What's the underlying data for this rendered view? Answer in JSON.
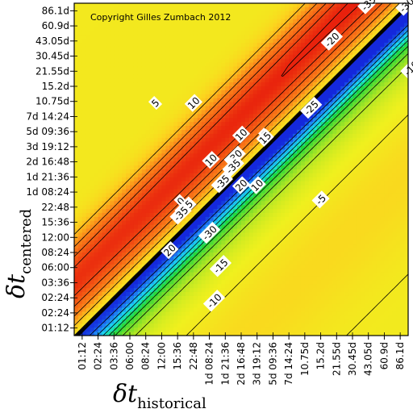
{
  "chart_data": {
    "type": "heatmap",
    "title": "",
    "annotation": "Copyright Gilles Zumbach 2012",
    "xlabel": {
      "symbol": "δt",
      "subscript": "historical"
    },
    "ylabel": {
      "symbol": "δt",
      "subscript": "centered"
    },
    "x_ticks": [
      "01:12",
      "02:24",
      "03:36",
      "06:00",
      "08:24",
      "12:00",
      "15:36",
      "22:48",
      "1d 08:24",
      "1d 21:36",
      "2d 16:48",
      "3d 19:12",
      "5d 09:36",
      "7d 14:24",
      "10.75d",
      "15.2d",
      "21.55d",
      "30.45d",
      "43.05d",
      "60.9d",
      "86.1d"
    ],
    "y_ticks": [
      "01:12",
      "02:24",
      "02:24",
      "03:36",
      "06:00",
      "08:24",
      "12:00",
      "15:36",
      "22:48",
      "1d 08:24",
      "1d 21:36",
      "2d 16:48",
      "3d 19:12",
      "5d 09:36",
      "7d 14:24",
      "10.75d",
      "15.2d",
      "21.55d",
      "30.45d",
      "43.05d",
      "60.9d",
      "86.1d"
    ],
    "color_scale": {
      "positive": "#e8200c",
      "zero": "#f5f020",
      "negative": "#1a40e0",
      "mid_negative": "#18e8e0"
    },
    "contour_levels": [
      -35,
      -30,
      -25,
      -20,
      -15,
      -10,
      -5,
      0,
      5,
      10,
      15,
      20,
      25
    ],
    "contour_labels": [
      {
        "i": 4.6,
        "j": 14.2,
        "value": "5"
      },
      {
        "i": 7.0,
        "j": 14.2,
        "value": "10"
      },
      {
        "i": 10.0,
        "j": 12.2,
        "value": "10"
      },
      {
        "i": 11.5,
        "j": 12.2,
        "value": "5"
      },
      {
        "i": 11.0,
        "j": 9.0,
        "value": "10"
      },
      {
        "i": 11.5,
        "j": 12.0,
        "value": "15"
      },
      {
        "i": 8.1,
        "j": 10.6,
        "value": "10"
      },
      {
        "i": 9.6,
        "j": 10.8,
        "value": "-30"
      },
      {
        "i": 9.5,
        "j": 10.2,
        "value": "-35"
      },
      {
        "i": 8.8,
        "j": 9.2,
        "value": "-35"
      },
      {
        "i": 6.2,
        "j": 8.0,
        "value": "0"
      },
      {
        "i": 6.5,
        "j": 7.6,
        "value": "-25"
      },
      {
        "i": 6.2,
        "j": 7.2,
        "value": "-35"
      },
      {
        "i": 8.0,
        "j": 6.0,
        "value": "-30"
      },
      {
        "i": 5.5,
        "j": 4.9,
        "value": "20"
      },
      {
        "i": 10.0,
        "j": 9.0,
        "value": "20"
      },
      {
        "i": 8.7,
        "j": 3.9,
        "value": "-15"
      },
      {
        "i": 8.3,
        "j": 1.7,
        "value": "-10"
      },
      {
        "i": 15.0,
        "j": 8.1,
        "value": "-5"
      },
      {
        "i": 14.4,
        "j": 13.9,
        "value": "-25"
      },
      {
        "i": 15.7,
        "j": 18.2,
        "value": "-20"
      },
      {
        "i": 18.0,
        "j": 21.5,
        "value": "0"
      },
      {
        "i": 18.4,
        "j": 20.9,
        "value": "-25"
      },
      {
        "i": 18.0,
        "j": 20.5,
        "value": "-35"
      },
      {
        "i": 20.4,
        "j": 20.4,
        "value": "-30"
      },
      {
        "i": 20.7,
        "j": 16.4,
        "value": "-10"
      }
    ]
  }
}
